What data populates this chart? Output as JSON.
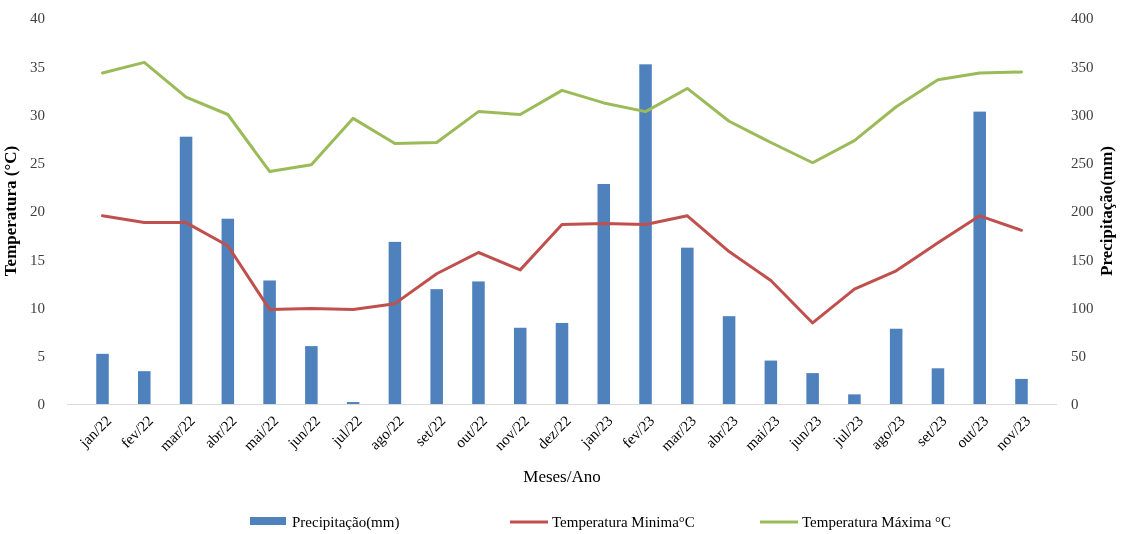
{
  "chart_data": {
    "type": "bar",
    "xlabel": "Meses/Ano",
    "ylabel": "Temperatura (°C)",
    "y2label": "Precipitação(mm)",
    "categories": [
      "jan/22",
      "fev/22",
      "mar/22",
      "abr/22",
      "mai/22",
      "jun/22",
      "jul/22",
      "ago/22",
      "set/22",
      "out/22",
      "nov/22",
      "dez/22",
      "jan/23",
      "fev/23",
      "mar/23",
      "abr/23",
      "mai/23",
      "jun/23",
      "jul/23",
      "ago/23",
      "set/23",
      "out/23",
      "nov/23"
    ],
    "series": [
      {
        "name": "Precipitação(mm)",
        "axis": "y2",
        "color": "#4f81bd",
        "values": [
          52,
          34,
          277,
          192,
          128,
          60,
          2,
          168,
          119,
          127,
          79,
          84,
          228,
          352,
          162,
          91,
          45,
          32,
          10,
          78,
          37,
          303,
          26
        ]
      },
      {
        "name": "Temperatura Minima°C",
        "type": "line",
        "color": "#c0504d",
        "values": [
          19.5,
          18.8,
          18.8,
          16.4,
          9.8,
          9.9,
          9.8,
          10.4,
          13.5,
          15.7,
          13.9,
          18.6,
          18.7,
          18.6,
          19.5,
          15.8,
          12.8,
          8.4,
          11.9,
          13.8,
          16.7,
          19.5,
          18.0
        ]
      },
      {
        "name": "Temperatura Máxima °C",
        "type": "line",
        "color": "#9bbb59",
        "values": [
          34.3,
          35.4,
          31.8,
          30.0,
          24.1,
          24.8,
          29.6,
          27.0,
          27.1,
          30.3,
          30.0,
          32.5,
          31.2,
          30.3,
          32.7,
          29.3,
          27.1,
          25.0,
          27.3,
          30.8,
          33.6,
          34.3,
          34.4
        ]
      }
    ],
    "ylim": [
      0,
      40
    ],
    "yticks": [
      0,
      5,
      10,
      15,
      20,
      25,
      30,
      35,
      40
    ],
    "y2lim": [
      0,
      400
    ],
    "y2ticks": [
      0,
      50,
      100,
      150,
      200,
      250,
      300,
      350,
      400
    ],
    "grid": false,
    "legend": "bottom",
    "marker": "none",
    "line_style": "solid"
  }
}
